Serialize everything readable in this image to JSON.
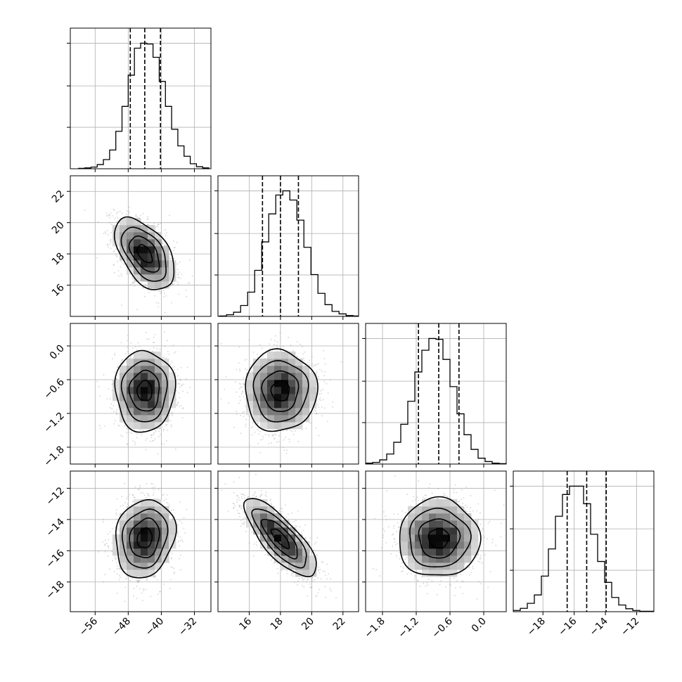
{
  "chart_data": {
    "type": "corner",
    "grid": true,
    "n_params": 4,
    "params": [
      {
        "range": [
          -62,
          -28
        ],
        "ticks": [
          -56,
          -48,
          -40,
          -32
        ],
        "tick_labels": [
          "−56",
          "−48",
          "−40",
          "−32"
        ],
        "median": -44.0,
        "q_low": -47.5,
        "q_high": -40.2,
        "std": 3.6
      },
      {
        "range": [
          14.0,
          23.0
        ],
        "ticks": [
          16,
          18,
          20,
          22
        ],
        "tick_labels": [
          "16",
          "18",
          "20",
          "22"
        ],
        "median": 18.0,
        "q_low": 16.85,
        "q_high": 19.15,
        "std": 1.15
      },
      {
        "range": [
          -2.1,
          0.4
        ],
        "ticks": [
          -1.8,
          -1.2,
          -0.6,
          0.0
        ],
        "tick_labels": [
          "−1.8",
          "−1.2",
          "−0.6",
          "0.0"
        ],
        "median": -0.8,
        "q_low": -1.16,
        "q_high": -0.44,
        "std": 0.36
      },
      {
        "range": [
          -19.9,
          -10.9
        ],
        "ticks": [
          -18,
          -16,
          -14,
          -12
        ],
        "tick_labels": [
          "−18",
          "−16",
          "−14",
          "−12"
        ],
        "median": -15.2,
        "q_low": -16.45,
        "q_high": -13.95,
        "std": 1.25
      }
    ],
    "marginals": [
      {
        "param": 0,
        "bin_edges_start": -60,
        "bin_width": 1.5,
        "counts": [
          1,
          2,
          4,
          10,
          22,
          45,
          90,
          150,
          225,
          290,
          302,
          300,
          268,
          210,
          150,
          95,
          55,
          30,
          12,
          5,
          2
        ]
      },
      {
        "param": 1,
        "bin_edges_start": 14.1,
        "bin_width": 0.45,
        "counts": [
          1,
          4,
          10,
          26,
          58,
          110,
          178,
          245,
          290,
          300,
          278,
          230,
          165,
          100,
          55,
          28,
          12,
          6,
          2,
          1
        ]
      },
      {
        "param": 2,
        "bin_edges_start": -2.1,
        "bin_width": 0.125,
        "counts": [
          2,
          4,
          10,
          24,
          52,
          95,
          150,
          220,
          272,
          300,
          298,
          250,
          185,
          120,
          70,
          35,
          14,
          6,
          2,
          1
        ]
      },
      {
        "param": 3,
        "bin_edges_start": -19.9,
        "bin_width": 0.45,
        "counts": [
          3,
          8,
          20,
          40,
          85,
          150,
          228,
          280,
          300,
          300,
          258,
          185,
          120,
          70,
          34,
          16,
          7,
          3,
          1,
          1
        ]
      }
    ],
    "pairs": [
      {
        "x": 0,
        "y": 1,
        "rho": -0.5
      },
      {
        "x": 0,
        "y": 2,
        "rho": 0.0
      },
      {
        "x": 1,
        "y": 2,
        "rho": 0.0
      },
      {
        "x": 0,
        "y": 3,
        "rho": 0.15
      },
      {
        "x": 1,
        "y": 3,
        "rho": -0.78
      },
      {
        "x": 2,
        "y": 3,
        "rho": 0.0
      }
    ],
    "contour_levels_sigma": [
      0.5,
      1.0,
      1.5,
      2.0
    ]
  }
}
